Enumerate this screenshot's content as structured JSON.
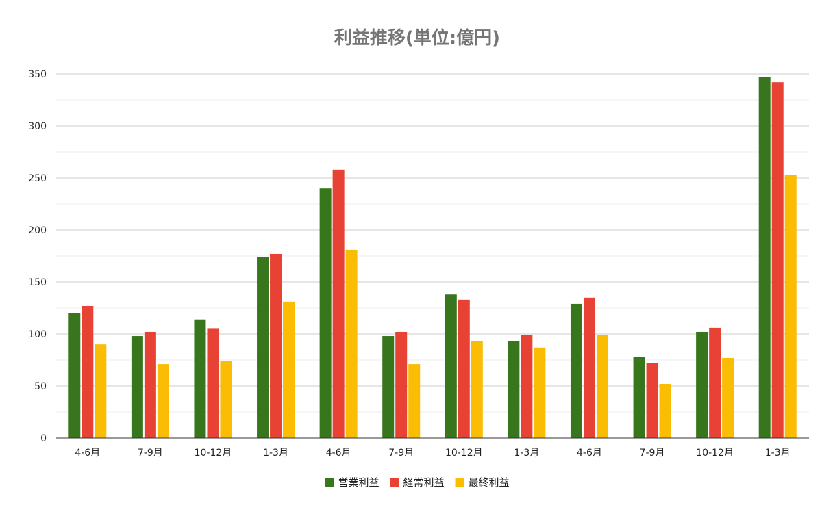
{
  "chart_data": {
    "type": "bar",
    "title": "利益推移(単位:億円)",
    "xlabel": "",
    "ylabel": "",
    "categories": [
      "4-6月",
      "7-9月",
      "10-12月",
      "1-3月",
      "4-6月",
      "7-9月",
      "10-12月",
      "1-3月",
      "4-6月",
      "7-9月",
      "10-12月",
      "1-3月"
    ],
    "series": [
      {
        "name": "営業利益",
        "color": "#38761d",
        "values": [
          120,
          98,
          114,
          174,
          240,
          98,
          138,
          93,
          129,
          78,
          102,
          347
        ]
      },
      {
        "name": "経常利益",
        "color": "#e84234",
        "values": [
          127,
          102,
          105,
          177,
          258,
          102,
          133,
          99,
          135,
          72,
          106,
          342
        ]
      },
      {
        "name": "最終利益",
        "color": "#fbbc04",
        "values": [
          90,
          71,
          74,
          131,
          181,
          71,
          93,
          87,
          99,
          52,
          77,
          253
        ]
      }
    ],
    "ylim": [
      0,
      350
    ],
    "yticks": [
      0,
      50,
      100,
      150,
      200,
      250,
      300,
      350
    ],
    "grid": true,
    "legend_position": "bottom"
  }
}
